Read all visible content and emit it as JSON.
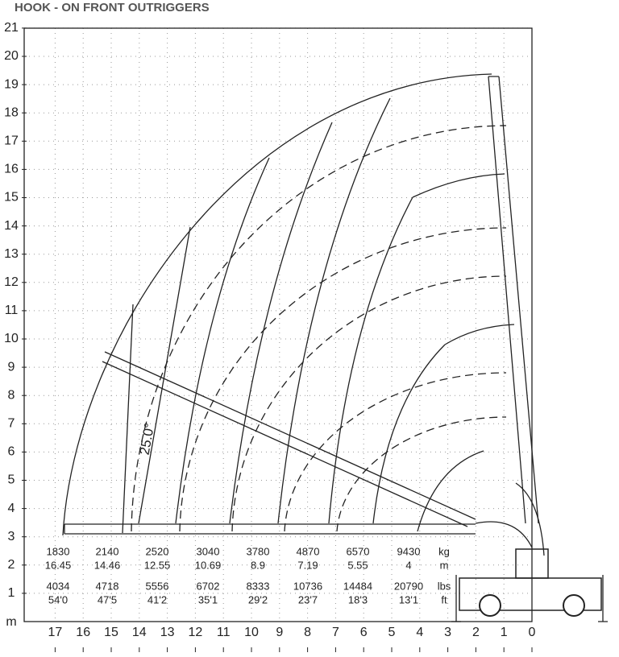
{
  "title": "HOOK -  ON FRONT OUTRIGGERS",
  "y_axis": {
    "ticks": [
      21,
      20,
      19,
      18,
      17,
      16,
      15,
      14,
      13,
      12,
      11,
      10,
      9,
      8,
      7,
      6,
      5,
      4,
      3,
      2,
      1
    ],
    "unit": "m"
  },
  "x_axis": {
    "ticks": [
      17,
      16,
      15,
      14,
      13,
      12,
      11,
      10,
      9,
      8,
      7,
      6,
      5,
      4,
      3,
      2,
      1,
      0
    ]
  },
  "boom_angle": "25.0°",
  "load_table": {
    "units": [
      "kg",
      "m",
      "lbs",
      "ft"
    ],
    "rows": [
      [
        1830,
        2140,
        2520,
        3040,
        3780,
        4870,
        6570,
        9430
      ],
      [
        16.45,
        14.46,
        12.55,
        10.69,
        8.9,
        7.19,
        5.55,
        4
      ],
      [
        4034,
        4718,
        5556,
        6702,
        8333,
        10736,
        14484,
        20790
      ],
      [
        "54'0",
        "47'5",
        "41'2",
        "35'1",
        "29'2",
        "23'7",
        "18'3",
        "13'1"
      ]
    ]
  }
}
